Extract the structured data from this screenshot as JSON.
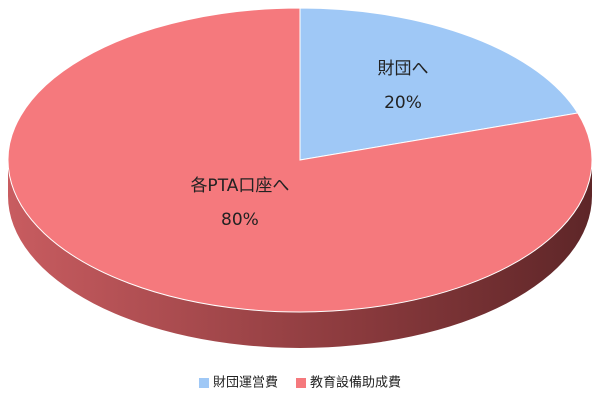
{
  "chart_data": {
    "type": "pie",
    "categories": [
      "財団運営費",
      "教育設備助成費"
    ],
    "labels": [
      "財団へ",
      "各PTA口座へ"
    ],
    "values": [
      20,
      80
    ],
    "value_labels": [
      "20%",
      "80%"
    ],
    "colors": [
      "#9fc8f6",
      "#f5797d"
    ],
    "legend": "bottom"
  }
}
